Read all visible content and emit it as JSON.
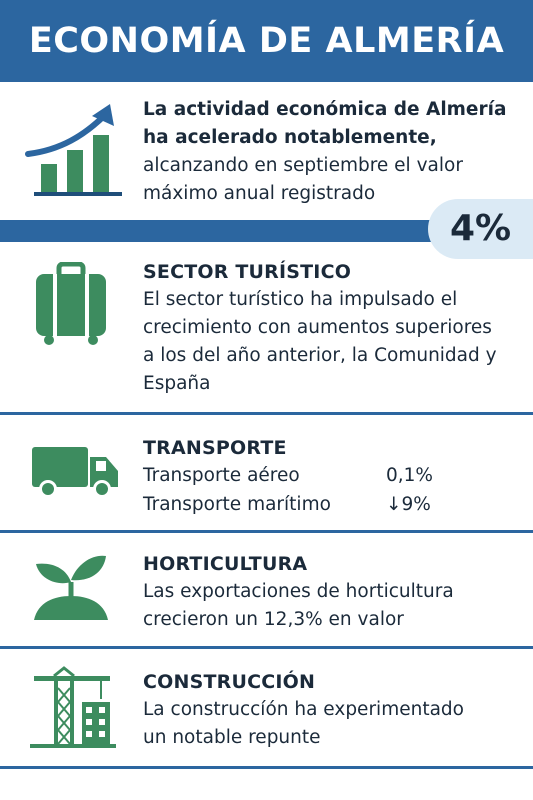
{
  "title": "ECONOMÍA DE ALMERÍA",
  "intro": {
    "bold": "La actividad económica de Almería ha acelerado notablemente,",
    "rest": " alcanzando en septiembre el valor máximo anual registrado",
    "value": "4%"
  },
  "sections": {
    "turistico": {
      "title": "SECTOR TURÍSTICO",
      "text": "El sector turístico ha impulsado el crecimiento con aumentos superiores a los del año anterior, la Comunidad y España"
    },
    "transporte": {
      "title": "TRANSPORTE",
      "rows": [
        {
          "label": "Transporte aéreo",
          "value": "0,1%"
        },
        {
          "label": "Transporte marítimo",
          "value": "↓9%"
        }
      ]
    },
    "horticultura": {
      "title": "HORTICULTURA",
      "text": "Las exportaciones de horticultura crecieron un 12,3% en valor"
    },
    "construccion": {
      "title": "CONSTRUCCIÓN",
      "text": "La construccíón ha experimentado un notable repunte"
    }
  },
  "icons": [
    "growth-chart-icon",
    "suitcase-icon",
    "truck-icon",
    "plant-icon",
    "construction-crane-icon"
  ],
  "colors": {
    "header": "#2c66a0",
    "icon_green": "#3d8c5f",
    "badge_bg": "#dbeaf5",
    "text": "#1b2a3a"
  }
}
